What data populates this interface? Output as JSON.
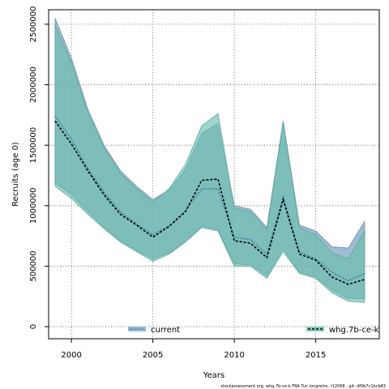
{
  "chart_data": {
    "type": "area",
    "xlabel": "Years",
    "ylabel": "Recruits (age 0)",
    "xlim": [
      1998.6,
      2018.9
    ],
    "ylim": [
      -100000,
      2620000
    ],
    "x_ticks": [
      2000,
      2005,
      2010,
      2015
    ],
    "x_tick_labels": [
      "2000",
      "2005",
      "2010",
      "2015"
    ],
    "y_ticks": [
      0,
      500000,
      1000000,
      1500000,
      2000000,
      2500000
    ],
    "y_tick_labels": [
      "0",
      "500000",
      "1000000",
      "1500000",
      "2000000",
      "2500000"
    ],
    "grid": true,
    "legend_position": "bottom",
    "x": [
      1999,
      2000,
      2001,
      2002,
      2003,
      2004,
      2005,
      2006,
      2007,
      2008,
      2009,
      2010,
      2011,
      2012,
      2013,
      2014,
      2015,
      2016,
      2017,
      2018
    ],
    "series": [
      {
        "name": "current",
        "color": "#2c6e9e",
        "band_color": "#7ea6c4",
        "line_style": "dotted",
        "median": [
          1740000,
          1550000,
          1310000,
          1110000,
          950000,
          850000,
          760000,
          830000,
          960000,
          1140000,
          1140000,
          740000,
          720000,
          600000,
          1070000,
          620000,
          560000,
          450000,
          380000,
          440000
        ],
        "lower": [
          1190000,
          1090000,
          950000,
          820000,
          710000,
          630000,
          560000,
          610000,
          700000,
          830000,
          800000,
          520000,
          510000,
          420000,
          640000,
          450000,
          410000,
          300000,
          230000,
          230000
        ],
        "upper": [
          2550000,
          2220000,
          1800000,
          1500000,
          1290000,
          1160000,
          1050000,
          1130000,
          1300000,
          1600000,
          1680000,
          1000000,
          970000,
          820000,
          1700000,
          840000,
          790000,
          660000,
          650000,
          870000
        ]
      },
      {
        "name": "whg.7b-ce-k",
        "color": "#000000",
        "band_color": "#6cbfae",
        "line_style": "dashed",
        "median": [
          1700000,
          1510000,
          1290000,
          1090000,
          930000,
          840000,
          740000,
          830000,
          950000,
          1210000,
          1220000,
          710000,
          690000,
          570000,
          1050000,
          600000,
          550000,
          410000,
          350000,
          390000
        ],
        "lower": [
          1160000,
          1060000,
          930000,
          810000,
          700000,
          620000,
          540000,
          600000,
          700000,
          820000,
          790000,
          500000,
          500000,
          400000,
          620000,
          440000,
          400000,
          280000,
          210000,
          200000
        ],
        "upper": [
          2490000,
          2180000,
          1770000,
          1480000,
          1270000,
          1140000,
          1030000,
          1140000,
          1340000,
          1660000,
          1760000,
          980000,
          950000,
          800000,
          1690000,
          820000,
          760000,
          610000,
          560000,
          790000
        ]
      }
    ],
    "footnote": "stockassessment.org, whg.7b-ce-k FRA Tun longretro, r12068 , git: df0b7c1bcb83"
  }
}
